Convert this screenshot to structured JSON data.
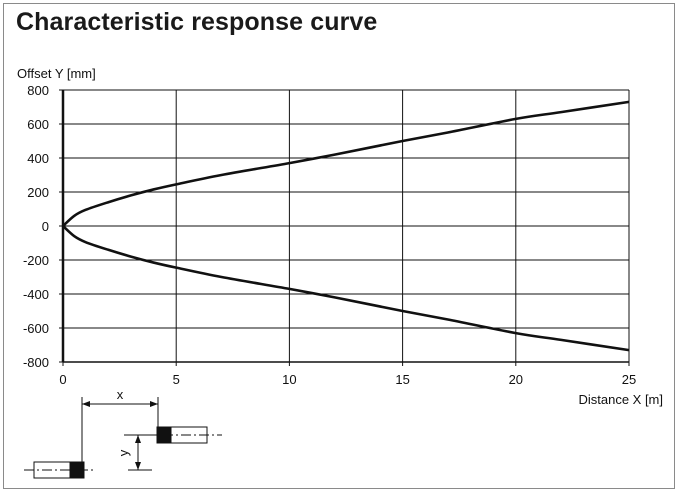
{
  "title": "Characteristic response curve",
  "chart_data": {
    "type": "line",
    "ylabel": "Offset Y [mm]",
    "xlabel": "Distance X [m]",
    "xlim": [
      0,
      25
    ],
    "ylim": [
      -800,
      800
    ],
    "x_ticks": [
      0,
      5,
      10,
      15,
      20,
      25
    ],
    "y_ticks": [
      800,
      600,
      400,
      200,
      0,
      -200,
      -400,
      -600,
      -800
    ],
    "grid": true,
    "series": [
      {
        "x": [
          0,
          0.5,
          1,
          2,
          3,
          4,
          5,
          7,
          10,
          12,
          15,
          17,
          20,
          22,
          25
        ],
        "y": [
          0,
          60,
          95,
          140,
          180,
          215,
          245,
          300,
          370,
          420,
          500,
          550,
          630,
          670,
          730
        ]
      },
      {
        "x": [
          0,
          0.5,
          1,
          2,
          3,
          4,
          5,
          7,
          10,
          12,
          15,
          17,
          20,
          22,
          25
        ],
        "y": [
          0,
          -60,
          -95,
          -140,
          -180,
          -215,
          -245,
          -300,
          -370,
          -420,
          -500,
          -550,
          -630,
          -670,
          -730
        ]
      }
    ]
  },
  "diagram": {
    "x_label": "x",
    "y_label": "y"
  }
}
